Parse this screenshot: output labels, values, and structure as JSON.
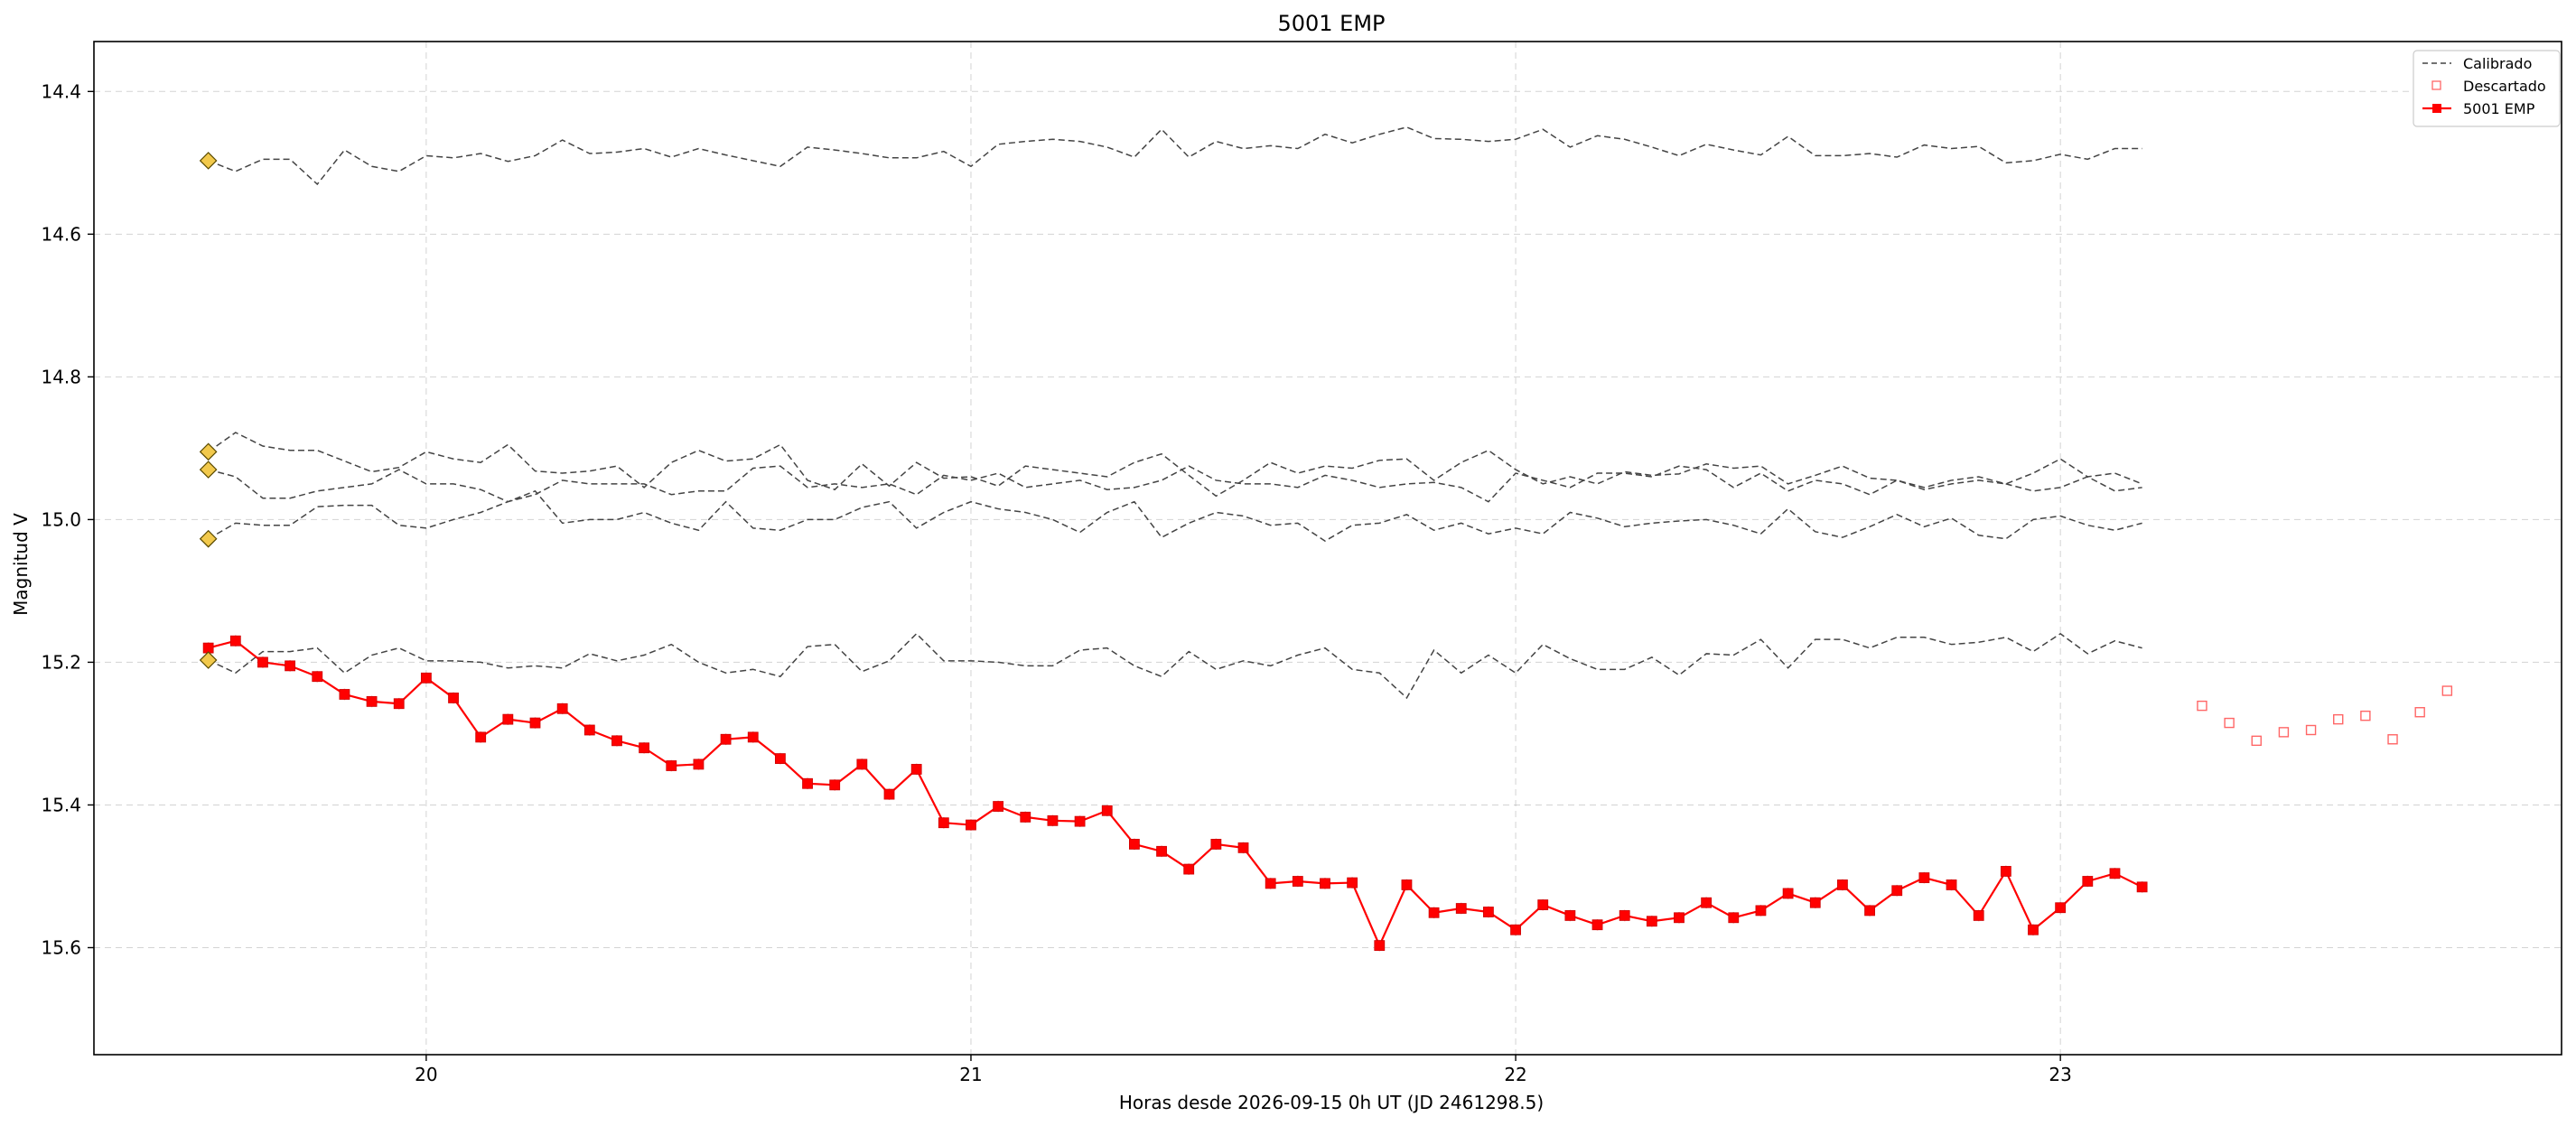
{
  "chart_data": {
    "type": "line",
    "title": "5001 EMP",
    "xlabel": "Horas desde 2026-09-15 0h UT (JD 2461298.5)",
    "ylabel": "Magnitud V",
    "xlim": [
      19.39,
      23.92
    ],
    "ylim": [
      15.75,
      14.33
    ],
    "y_inverted": true,
    "xticks": [
      20,
      21,
      22,
      23
    ],
    "yticks": [
      14.4,
      14.6,
      14.8,
      15.0,
      15.2,
      15.4,
      15.6
    ],
    "xtick_labels": [
      "20",
      "21",
      "22",
      "23"
    ],
    "ytick_labels": [
      "14.4",
      "14.6",
      "14.8",
      "15.0",
      "15.2",
      "15.4",
      "15.6"
    ],
    "grid": true,
    "legend_position": "top-right",
    "legend": [
      "Calibrado",
      "Descartado",
      "5001 EMP"
    ],
    "x": [
      19.6,
      19.65,
      19.7,
      19.75,
      19.8,
      19.85,
      19.9,
      19.95,
      20.0,
      20.05,
      20.1,
      20.15,
      20.2,
      20.25,
      20.3,
      20.35,
      20.4,
      20.45,
      20.5,
      20.55,
      20.6,
      20.65,
      20.7,
      20.75,
      20.8,
      20.85,
      20.9,
      20.95,
      21.0,
      21.05,
      21.1,
      21.15,
      21.2,
      21.25,
      21.3,
      21.35,
      21.4,
      21.45,
      21.5,
      21.55,
      21.6,
      21.65,
      21.7,
      21.75,
      21.8,
      21.85,
      21.9,
      21.95,
      22.0,
      22.05,
      22.1,
      22.15,
      22.2,
      22.25,
      22.3,
      22.35,
      22.4,
      22.45,
      22.5,
      22.55,
      22.6,
      22.65,
      22.7,
      22.75,
      22.8,
      22.85,
      22.9,
      22.95,
      23.0,
      23.05,
      23.1,
      23.15
    ],
    "series": [
      {
        "name": "5001 EMP",
        "color": "#ff0000",
        "marker": "square",
        "errorbar": 0.008,
        "values": [
          15.18,
          15.17,
          15.2,
          15.205,
          15.22,
          15.245,
          15.255,
          15.258,
          15.222,
          15.25,
          15.305,
          15.28,
          15.285,
          15.265,
          15.295,
          15.31,
          15.32,
          15.345,
          15.343,
          15.308,
          15.305,
          15.335,
          15.37,
          15.372,
          15.343,
          15.385,
          15.35,
          15.425,
          15.428,
          15.402,
          15.417,
          15.422,
          15.423,
          15.408,
          15.455,
          15.465,
          15.49,
          15.455,
          15.46,
          15.51,
          15.507,
          15.51,
          15.509,
          15.597,
          15.512,
          15.551,
          15.545,
          15.55,
          15.575,
          15.54,
          15.555,
          15.568,
          15.555,
          15.563,
          15.558,
          15.537,
          15.558,
          15.548,
          15.524,
          15.537,
          15.512,
          15.548,
          15.52,
          15.502,
          15.512,
          15.555,
          15.493,
          15.575,
          15.544,
          15.507,
          15.496,
          15.515
        ]
      },
      {
        "name": "Calibrado",
        "color": "#444444",
        "style": "dashed",
        "values": [
          14.497,
          14.512,
          14.495,
          14.495,
          14.53,
          14.482,
          14.505,
          14.512,
          14.49,
          14.493,
          14.487,
          14.498,
          14.49,
          14.468,
          14.487,
          14.485,
          14.48,
          14.492,
          14.48,
          14.489,
          14.497,
          14.505,
          14.478,
          14.482,
          14.487,
          14.493,
          14.493,
          14.484,
          14.505,
          14.474,
          14.47,
          14.467,
          14.47,
          14.478,
          14.492,
          14.453,
          14.492,
          14.47,
          14.48,
          14.476,
          14.48,
          14.46,
          14.472,
          14.46,
          14.45,
          14.466,
          14.467,
          14.47,
          14.467,
          14.453,
          14.478,
          14.462,
          14.467,
          14.478,
          14.49,
          14.474,
          14.482,
          14.489,
          14.463,
          14.49,
          14.49,
          14.487,
          14.492,
          14.475,
          14.48,
          14.477,
          14.5,
          14.497,
          14.488,
          14.495,
          14.48,
          14.48
        ]
      },
      {
        "values": [
          14.905,
          14.878,
          14.897,
          14.903,
          14.903,
          14.918,
          14.933,
          14.927,
          14.905,
          14.915,
          14.92,
          14.895,
          14.932,
          14.935,
          14.932,
          14.925,
          14.955,
          14.92,
          14.903,
          14.918,
          14.915,
          14.895,
          14.945,
          14.958,
          14.922,
          14.953,
          14.92,
          14.942,
          14.94,
          14.953,
          14.925,
          14.93,
          14.935,
          14.94,
          14.92,
          14.908,
          14.938,
          14.967,
          14.945,
          14.92,
          14.935,
          14.925,
          14.928,
          14.917,
          14.915,
          14.945,
          14.92,
          14.903,
          14.93,
          14.95,
          14.94,
          14.95,
          14.933,
          14.938,
          14.936,
          14.922,
          14.928,
          14.925,
          14.95,
          14.938,
          14.925,
          14.942,
          14.945,
          14.958,
          14.95,
          14.945,
          14.95,
          14.935,
          14.915,
          14.94,
          14.935,
          14.95
        ]
      },
      {
        "values": [
          14.93,
          14.94,
          14.97,
          14.97,
          14.96,
          14.955,
          14.95,
          14.93,
          14.95,
          14.95,
          14.958,
          14.975,
          14.965,
          14.945,
          14.95,
          14.95,
          14.95,
          14.965,
          14.96,
          14.96,
          14.928,
          14.925,
          14.955,
          14.95,
          14.955,
          14.95,
          14.965,
          14.938,
          14.945,
          14.935,
          14.955,
          14.95,
          14.945,
          14.958,
          14.955,
          14.945,
          14.925,
          14.945,
          14.95,
          14.95,
          14.955,
          14.938,
          14.945,
          14.955,
          14.95,
          14.948,
          14.955,
          14.975,
          14.935,
          14.945,
          14.955,
          14.935,
          14.935,
          14.94,
          14.925,
          14.93,
          14.955,
          14.935,
          14.96,
          14.945,
          14.95,
          14.965,
          14.945,
          14.955,
          14.945,
          14.94,
          14.95,
          14.96,
          14.955,
          14.94,
          14.96,
          14.955
        ]
      },
      {
        "values": [
          15.027,
          15.005,
          15.008,
          15.008,
          14.982,
          14.98,
          14.98,
          15.008,
          15.012,
          15.0,
          14.99,
          14.975,
          14.96,
          15.005,
          15.0,
          15.0,
          14.99,
          15.005,
          15.015,
          14.975,
          15.012,
          15.015,
          15.0,
          15.0,
          14.983,
          14.975,
          15.012,
          14.99,
          14.975,
          14.985,
          14.99,
          15.0,
          15.018,
          14.99,
          14.975,
          15.025,
          15.005,
          14.99,
          14.995,
          15.008,
          15.005,
          15.03,
          15.008,
          15.005,
          14.993,
          15.015,
          15.005,
          15.02,
          15.012,
          15.02,
          14.99,
          14.998,
          15.01,
          15.005,
          15.002,
          15.0,
          15.008,
          15.02,
          14.985,
          15.017,
          15.025,
          15.01,
          14.993,
          15.01,
          14.998,
          15.022,
          15.027,
          15.0,
          14.995,
          15.008,
          15.015,
          15.005
        ]
      },
      {
        "values": [
          15.197,
          15.215,
          15.185,
          15.185,
          15.18,
          15.215,
          15.19,
          15.18,
          15.198,
          15.198,
          15.2,
          15.208,
          15.205,
          15.208,
          15.188,
          15.198,
          15.19,
          15.175,
          15.2,
          15.215,
          15.21,
          15.22,
          15.178,
          15.175,
          15.213,
          15.198,
          15.16,
          15.198,
          15.198,
          15.2,
          15.205,
          15.205,
          15.183,
          15.18,
          15.205,
          15.22,
          15.185,
          15.21,
          15.198,
          15.205,
          15.19,
          15.18,
          15.21,
          15.215,
          15.25,
          15.183,
          15.215,
          15.19,
          15.215,
          15.175,
          15.195,
          15.21,
          15.21,
          15.193,
          15.218,
          15.188,
          15.19,
          15.168,
          15.208,
          15.168,
          15.168,
          15.18,
          15.165,
          15.165,
          15.175,
          15.172,
          15.165,
          15.185,
          15.16,
          15.188,
          15.17,
          15.18
        ]
      },
      {
        "name": "Descartado",
        "color": "#ff6666",
        "marker": "open-square",
        "x": [
          23.26,
          23.31,
          23.36,
          23.41,
          23.46,
          23.51,
          23.56,
          23.61,
          23.66,
          23.71
        ],
        "values": [
          15.261,
          15.285,
          15.31,
          15.298,
          15.295,
          15.28,
          15.275,
          15.308,
          15.27,
          15.24
        ]
      }
    ],
    "reference_markers": {
      "color": "#f2c94c",
      "x": 19.6,
      "values": [
        14.497,
        14.905,
        14.93,
        15.027,
        15.197
      ]
    }
  }
}
